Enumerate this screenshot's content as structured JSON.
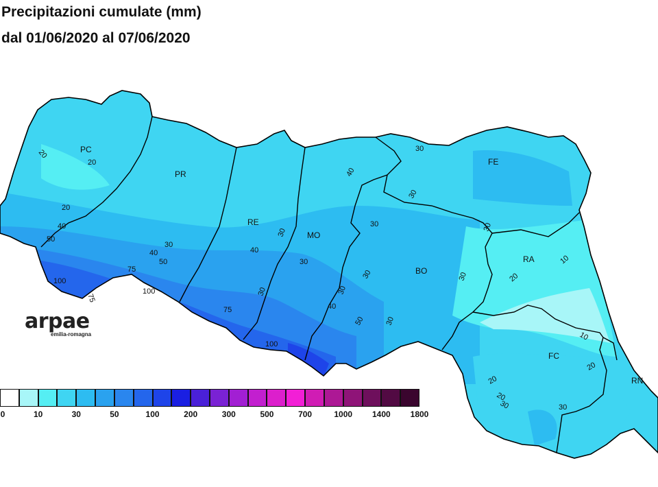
{
  "title": {
    "line1": "Precipitazioni cumulate (mm)",
    "line2": "dal 01/06/2020 al 07/06/2020"
  },
  "logo": {
    "name": "arpae",
    "sub": "emilia-romagna"
  },
  "provinces": [
    "PC",
    "PR",
    "RE",
    "MO",
    "BO",
    "FE",
    "RA",
    "FC",
    "RN"
  ],
  "contours": [
    {
      "label": "20"
    },
    {
      "label": "20"
    },
    {
      "label": "20"
    },
    {
      "label": "40"
    },
    {
      "label": "50"
    },
    {
      "label": "100"
    },
    {
      "label": "75"
    },
    {
      "label": "100"
    },
    {
      "label": "75"
    },
    {
      "label": "40"
    },
    {
      "label": "50"
    },
    {
      "label": "30"
    },
    {
      "label": "30"
    },
    {
      "label": "40"
    },
    {
      "label": "75"
    },
    {
      "label": "30"
    },
    {
      "label": "30"
    },
    {
      "label": "100"
    },
    {
      "label": "40"
    },
    {
      "label": "30"
    },
    {
      "label": "40"
    },
    {
      "label": "30"
    },
    {
      "label": "30"
    },
    {
      "label": "30"
    },
    {
      "label": "50"
    },
    {
      "label": "30"
    },
    {
      "label": "30"
    },
    {
      "label": "20"
    },
    {
      "label": "30"
    },
    {
      "label": "30"
    },
    {
      "label": "10"
    },
    {
      "label": "20"
    },
    {
      "label": "10"
    },
    {
      "label": "20"
    },
    {
      "label": "20"
    },
    {
      "label": "30"
    },
    {
      "label": "30"
    }
  ],
  "legend": {
    "colors": [
      "#ffffff",
      "#a8f6f8",
      "#55eef3",
      "#3fd5f2",
      "#2dbcf1",
      "#2aa2ef",
      "#2a86ee",
      "#2466ec",
      "#1e44e9",
      "#1a1fe2",
      "#4a20d8",
      "#7a22d4",
      "#a21fd3",
      "#c21fcf",
      "#dc1fcc",
      "#f21fd6",
      "#d01cb4",
      "#ad1895",
      "#8f1478",
      "#6e0f5c",
      "#520a43",
      "#3a052e"
    ],
    "ticks": [
      "0",
      "10",
      "30",
      "50",
      "100",
      "200",
      "300",
      "500",
      "700",
      "1000",
      "1400",
      "1800"
    ]
  }
}
